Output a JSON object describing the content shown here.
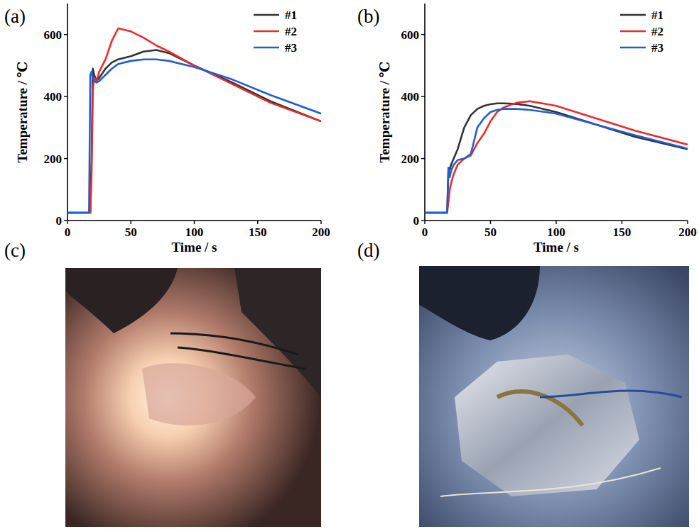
{
  "panel_labels": [
    "(a)",
    "(b)",
    "(c)",
    "(d)"
  ],
  "chart_data": [
    {
      "type": "line",
      "xlabel": "Time / s",
      "ylabel": "Temperature / ℃",
      "x": [
        0,
        17,
        18,
        19,
        20,
        21,
        23,
        25,
        30,
        35,
        40,
        50,
        60,
        70,
        80,
        100,
        130,
        160,
        200
      ],
      "xlim": [
        0,
        200
      ],
      "ylim": [
        0,
        700
      ],
      "xticks": [
        0,
        50,
        100,
        150,
        200
      ],
      "yticks": [
        0,
        200,
        400,
        600
      ],
      "legend": "upper right",
      "series": [
        {
          "name": "#1",
          "color": "#333333",
          "values": [
            25,
            25,
            25,
            200,
            490,
            470,
            450,
            460,
            490,
            510,
            520,
            530,
            545,
            550,
            540,
            500,
            445,
            385,
            320
          ]
        },
        {
          "name": "#2",
          "color": "#ee2b2b",
          "values": [
            25,
            25,
            25,
            150,
            420,
            460,
            450,
            480,
            520,
            580,
            620,
            610,
            590,
            565,
            545,
            500,
            440,
            380,
            320
          ]
        },
        {
          "name": "#3",
          "color": "#1f5fd6",
          "values": [
            25,
            25,
            470,
            480,
            460,
            450,
            445,
            450,
            470,
            490,
            505,
            515,
            520,
            520,
            515,
            495,
            455,
            405,
            345
          ]
        }
      ]
    },
    {
      "type": "line",
      "xlabel": "Time / s",
      "ylabel": "Temperature / ℃",
      "x": [
        0,
        17,
        18,
        19,
        20,
        22,
        25,
        30,
        35,
        40,
        45,
        50,
        55,
        60,
        70,
        80,
        100,
        130,
        160,
        200
      ],
      "xlim": [
        0,
        200
      ],
      "ylim": [
        0,
        700
      ],
      "xticks": [
        0,
        50,
        100,
        150,
        200
      ],
      "yticks": [
        0,
        200,
        400,
        600
      ],
      "legend": "upper right",
      "series": [
        {
          "name": "#1",
          "color": "#333333",
          "values": [
            25,
            25,
            170,
            165,
            180,
            200,
            230,
            300,
            340,
            360,
            370,
            375,
            378,
            378,
            376,
            370,
            350,
            310,
            270,
            230
          ]
        },
        {
          "name": "#2",
          "color": "#ee2b2b",
          "values": [
            25,
            25,
            60,
            100,
            120,
            150,
            180,
            200,
            210,
            250,
            280,
            320,
            350,
            365,
            380,
            385,
            370,
            330,
            290,
            245
          ]
        },
        {
          "name": "#3",
          "color": "#1f5fd6",
          "values": [
            25,
            25,
            170,
            140,
            160,
            180,
            195,
            200,
            215,
            300,
            330,
            350,
            357,
            360,
            360,
            357,
            345,
            310,
            275,
            232
          ]
        }
      ]
    }
  ]
}
